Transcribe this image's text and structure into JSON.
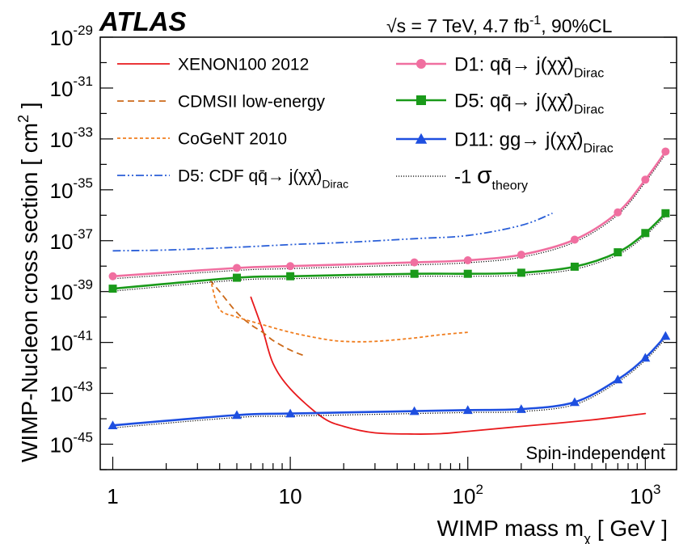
{
  "header": {
    "experiment": "ATLAS",
    "conditions_prefix": "√s = 7 TeV, 4.7 fb",
    "conditions_sup": "-1",
    "conditions_suffix": ", 90%CL"
  },
  "annotation": "Spin-independent",
  "chart_data": {
    "type": "line",
    "title": "",
    "xlabel_main": "WIMP mass m",
    "xlabel_sub": "χ",
    "xlabel_unit": " [ GeV ]",
    "ylabel_main": "WIMP-Nucleon cross section [ cm",
    "ylabel_sup": "2",
    "ylabel_end": " ]",
    "xscale": "log",
    "yscale": "log",
    "xlim": [
      0.85,
      1500
    ],
    "ylim": [
      1e-46,
      1e-29
    ],
    "x_ticks": [
      {
        "value": 1,
        "base": "1",
        "exp": ""
      },
      {
        "value": 10,
        "base": "10",
        "exp": ""
      },
      {
        "value": 100,
        "base": "10",
        "exp": "2"
      },
      {
        "value": 1000,
        "base": "10",
        "exp": "3"
      }
    ],
    "y_ticks": [
      {
        "value": 1e-45,
        "base": "10",
        "exp": "-45"
      },
      {
        "value": 1e-43,
        "base": "10",
        "exp": "-43"
      },
      {
        "value": 1e-41,
        "base": "10",
        "exp": "-41"
      },
      {
        "value": 1e-39,
        "base": "10",
        "exp": "-39"
      },
      {
        "value": 1e-37,
        "base": "10",
        "exp": "-37"
      },
      {
        "value": 1e-35,
        "base": "10",
        "exp": "-35"
      },
      {
        "value": 1e-33,
        "base": "10",
        "exp": "-33"
      },
      {
        "value": 1e-31,
        "base": "10",
        "exp": "-31"
      },
      {
        "value": 1e-29,
        "base": "10",
        "exp": "-29"
      }
    ],
    "legend_position": "top",
    "series": [
      {
        "name": "XENON100 2012",
        "color": "#e8191c",
        "dash": "solid",
        "width": 1.8,
        "x": [
          6,
          7,
          8,
          10,
          15,
          20,
          30,
          50,
          70,
          100,
          200,
          500,
          1000
        ],
        "y": [
          6e-40,
          3e-41,
          1.5e-42,
          1.5e-43,
          1.2e-44,
          5e-45,
          2.8e-45,
          2.5e-45,
          2.6e-45,
          3.2e-45,
          5e-45,
          9e-45,
          1.6e-44
        ]
      },
      {
        "name": "CDMSII low-energy",
        "color": "#cc6a1a",
        "dash": "8,5",
        "width": 1.8,
        "x": [
          3.5,
          4,
          5,
          6,
          7,
          8,
          10,
          12
        ],
        "y": [
          3e-39,
          1e-39,
          1.5e-40,
          5e-41,
          2.5e-41,
          1.2e-41,
          5e-42,
          3e-42
        ]
      },
      {
        "name": "CoGeNT 2010",
        "color": "#f07d1e",
        "dash": "4,3",
        "width": 1.8,
        "x": [
          3.6,
          4,
          5,
          7,
          10,
          15,
          20,
          30,
          50,
          70,
          100
        ],
        "y": [
          2e-39,
          2e-40,
          1e-40,
          5e-41,
          2.5e-41,
          1.4e-41,
          1.1e-41,
          1.1e-41,
          1.5e-41,
          2e-41,
          2.5e-41
        ]
      },
      {
        "name": "D5: CDF ",
        "legend_math": "qq̄→ j(χχ̄)",
        "legend_sub": "Dirac",
        "color": "#2a5fd8",
        "dash": "10,3,2,3,2,3",
        "width": 1.8,
        "x": [
          1,
          2,
          5,
          10,
          20,
          50,
          100,
          200,
          300
        ],
        "y": [
          4e-38,
          4.3e-38,
          5.5e-38,
          7e-38,
          8.5e-38,
          1.2e-37,
          1.6e-37,
          4e-37,
          1.2e-36
        ]
      },
      {
        "name": "D1: ",
        "legend_math": "qq̄→ j(χχ̄)",
        "legend_sub": "Dirac",
        "color": "#f06fa0",
        "dash": "solid",
        "width": 2.6,
        "marker": "circle",
        "x": [
          1,
          5,
          10,
          50,
          100,
          200,
          400,
          700,
          1000,
          1300
        ],
        "y": [
          4e-39,
          8.5e-39,
          1e-38,
          1.4e-38,
          1.7e-38,
          2.8e-38,
          1.1e-37,
          1.3e-36,
          2.5e-35,
          3.2e-34
        ]
      },
      {
        "name": "D5: ",
        "legend_math": "qq̄→ j(χχ̄)",
        "legend_sub": "Dirac",
        "color": "#1a9a1a",
        "dash": "solid",
        "width": 2.6,
        "marker": "square",
        "x": [
          1,
          5,
          10,
          50,
          100,
          200,
          400,
          700,
          1000,
          1300
        ],
        "y": [
          1.3e-39,
          3.5e-39,
          4e-39,
          5e-39,
          5e-39,
          5.5e-39,
          9.5e-39,
          3.5e-38,
          2e-37,
          1.2e-36
        ]
      },
      {
        "name": "D11: ",
        "legend_math": "gg→ j(χχ̄)",
        "legend_sub": "Dirac",
        "color": "#1e4fe0",
        "dash": "solid",
        "width": 2.6,
        "marker": "triangle",
        "x": [
          1,
          5,
          10,
          50,
          100,
          200,
          400,
          700,
          1000,
          1300
        ],
        "y": [
          5.5e-45,
          1.4e-44,
          1.6e-44,
          2e-44,
          2.2e-44,
          2.4e-44,
          4.5e-44,
          3.5e-43,
          2.5e-42,
          1.8e-41
        ]
      },
      {
        "name": "-1 ",
        "legend_math": "σ",
        "legend_sub": "theory",
        "color": "#000000",
        "dash": "1.2,1.8",
        "width": 1.3,
        "x": [],
        "y": []
      }
    ],
    "theory_band": {
      "color": "#000000",
      "dash": "1.2,1.8",
      "width": 1.2,
      "factor": 0.8
    }
  }
}
